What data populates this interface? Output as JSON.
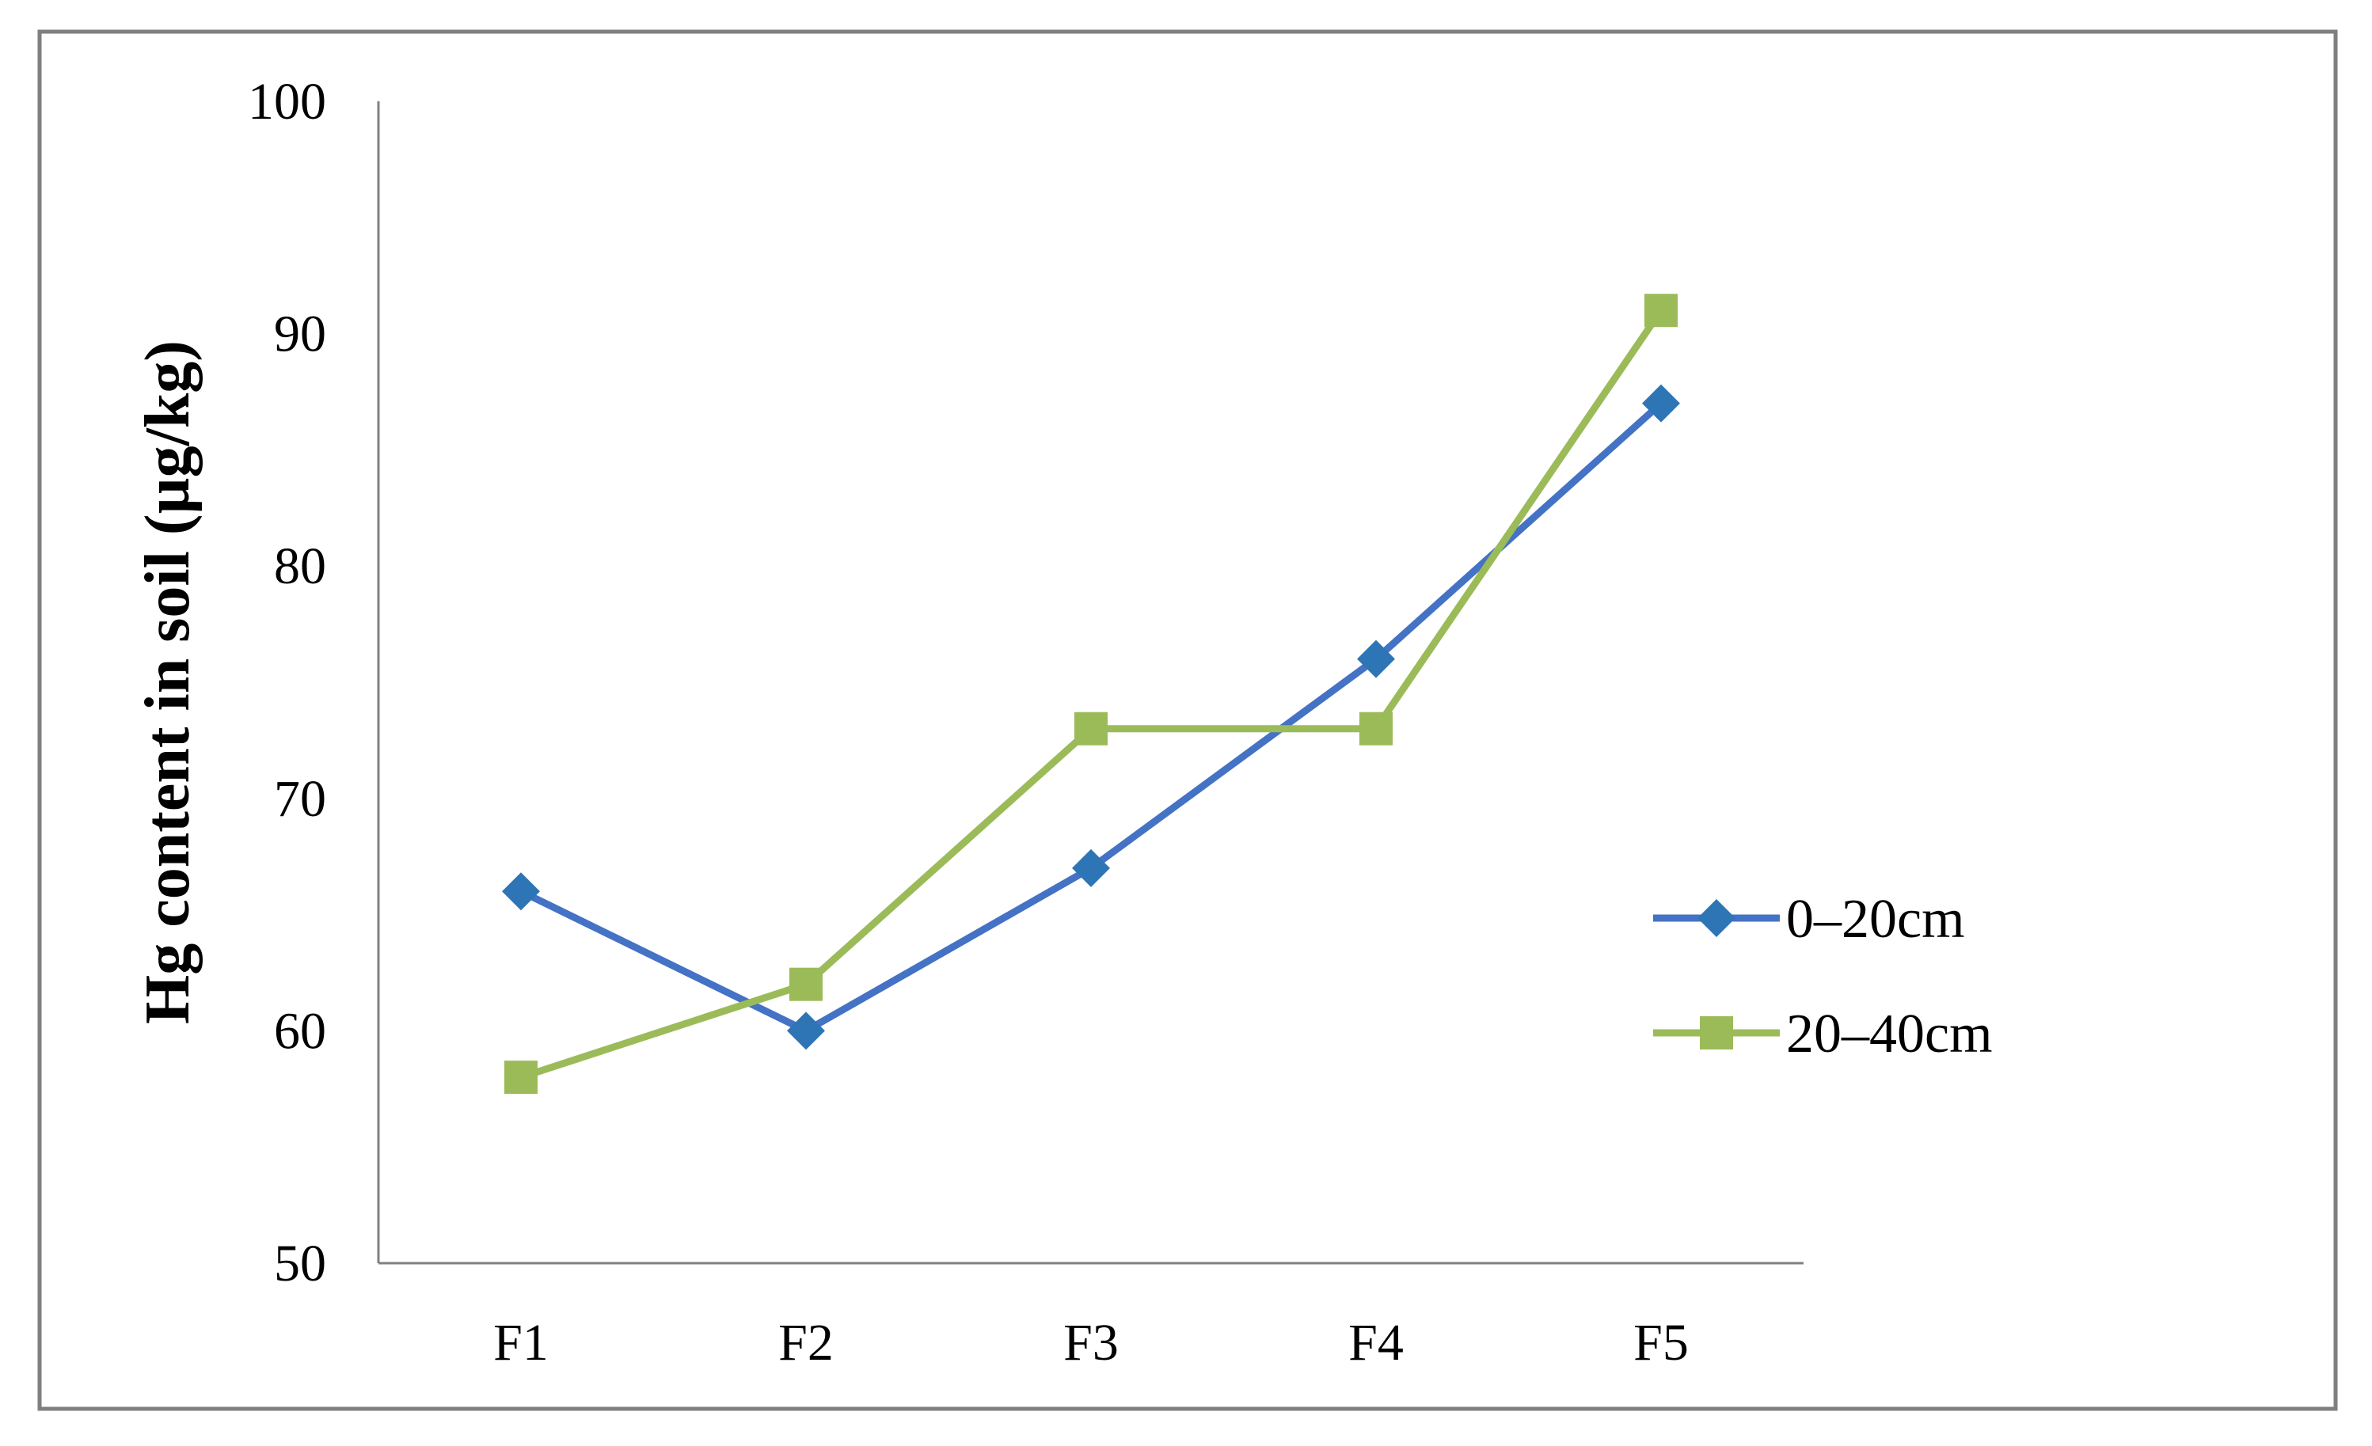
{
  "chart_data": {
    "type": "line",
    "title": "",
    "xlabel": "",
    "ylabel": "Hg content in soil (µg/kg)",
    "categories": [
      "F1",
      "F2",
      "F3",
      "F4",
      "F5"
    ],
    "ylim": [
      50,
      100
    ],
    "yticks": [
      "50",
      "60",
      "70",
      "80",
      "90",
      "100"
    ],
    "grid": false,
    "legend_position": "right",
    "series": [
      {
        "name": "0–20cm",
        "values": [
          66,
          60,
          67,
          76,
          87
        ],
        "color": "#4472c4",
        "marker_color": "#2e75b6",
        "marker": "diamond"
      },
      {
        "name": "20–40cm",
        "values": [
          58,
          62,
          73,
          73,
          91
        ],
        "color": "#9bbb59",
        "marker_color": "#9bbb59",
        "marker": "square"
      }
    ]
  }
}
